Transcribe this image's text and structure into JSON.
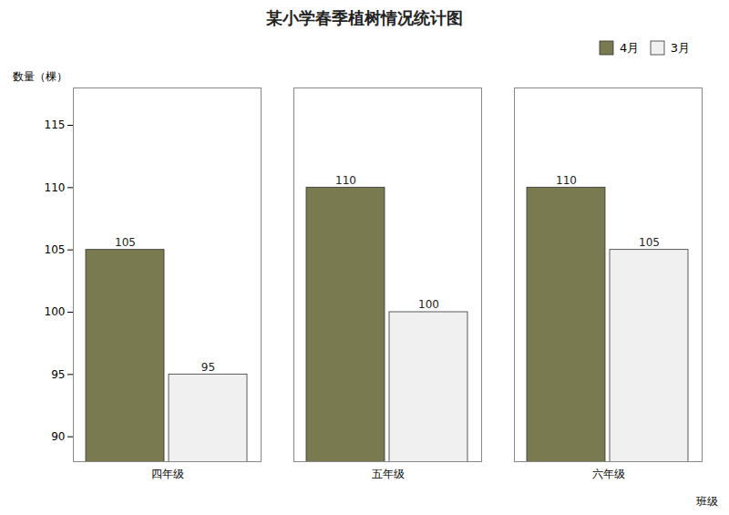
{
  "chart_data": {
    "type": "bar",
    "title": "某小学春季植树情况统计图",
    "xlabel": "班级",
    "ylabel": "数量（棵）",
    "categories": [
      "四年级",
      "五年级",
      "六年级"
    ],
    "series": [
      {
        "name": "4月",
        "color": "#7a7a50",
        "values": [
          105,
          110,
          110
        ]
      },
      {
        "name": "3月",
        "color": "#f0f0f0",
        "values": [
          95,
          100,
          105
        ]
      }
    ],
    "ylim": [
      88,
      118
    ],
    "yticks": [
      90,
      95,
      100,
      105,
      110,
      115
    ],
    "data_labels": true,
    "legend": "upper right"
  }
}
